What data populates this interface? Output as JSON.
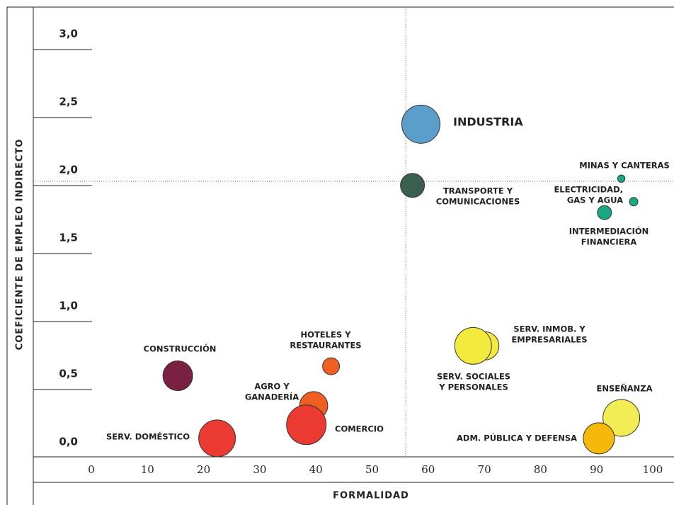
{
  "chart_data": {
    "type": "bubble",
    "x_label": "FORMALIDAD",
    "y_label": "COEFICIENTE DE EMPLEO INDIRECTO",
    "xlim": [
      0,
      100
    ],
    "xticks": [
      0,
      10,
      20,
      30,
      40,
      50,
      60,
      70,
      80,
      90,
      100
    ],
    "ylim": [
      0,
      3
    ],
    "yticks": [
      {
        "value": 0,
        "label": "0,0"
      },
      {
        "value": 0.5,
        "label": "0,5"
      },
      {
        "value": 1,
        "label": "1,0"
      },
      {
        "value": 1.5,
        "label": "1,5"
      },
      {
        "value": 2,
        "label": "2,0"
      },
      {
        "value": 2.5,
        "label": "2,5"
      },
      {
        "value": 3,
        "label": "3,0"
      }
    ],
    "reference_x": 56,
    "reference_y": 2.0,
    "points": [
      {
        "label": [
          "INDUSTRIA"
        ],
        "x": 58.7,
        "y": 2.42,
        "size": 81,
        "color": "#5b9ecb"
      },
      {
        "label": [
          "TRANSPORTE Y",
          "COMUNICACIONES"
        ],
        "x": 57.2,
        "y": 1.97,
        "size": 32,
        "color": "#3a5e4f"
      },
      {
        "label": [
          "MINAS Y CANTERAS"
        ],
        "x": 94.4,
        "y": 2.02,
        "size": 3,
        "color": "#1aa783"
      },
      {
        "label": [
          "ELECTRICIDAD,",
          "GAS Y AGUA"
        ],
        "x": 96.6,
        "y": 1.85,
        "size": 4,
        "color": "#1aa783"
      },
      {
        "label": [
          "INTERMEDIACIÓN",
          "FINANCIERA"
        ],
        "x": 91.4,
        "y": 1.77,
        "size": 11,
        "color": "#1aa783"
      },
      {
        "label": [
          "SERV. INMOB. Y",
          "EMPRESARIALES"
        ],
        "x": 70.1,
        "y": 0.79,
        "size": 44,
        "color": "#f2ea3c"
      },
      {
        "label": [
          "SERV. SOCIALES",
          "Y PERSONALES"
        ],
        "x": 68.0,
        "y": 0.79,
        "size": 75,
        "color": "#f2ea3c"
      },
      {
        "label": [
          "ENSEÑANZA"
        ],
        "x": 94.4,
        "y": 0.26,
        "size": 75,
        "color": "#f2ec55"
      },
      {
        "label": [
          "ADM. PÚBLICA Y DEFENSA"
        ],
        "x": 90.4,
        "y": 0.11,
        "size": 54,
        "color": "#f6b90a"
      },
      {
        "label": [
          "CONSTRUCCIÓN"
        ],
        "x": 15.4,
        "y": 0.57,
        "size": 49,
        "color": "#7a2040"
      },
      {
        "label": [
          "HOTELES Y",
          "RESTAURANTES"
        ],
        "x": 42.7,
        "y": 0.64,
        "size": 16,
        "color": "#f05f22"
      },
      {
        "label": [
          "AGRO Y",
          "GANADERÍA"
        ],
        "x": 39.6,
        "y": 0.35,
        "size": 44,
        "color": "#f05f22"
      },
      {
        "label": [
          "COMERCIO"
        ],
        "x": 38.3,
        "y": 0.21,
        "size": 87,
        "color": "#eb3a32"
      },
      {
        "label": [
          "SERV. DOMÉSTICO"
        ],
        "x": 22.4,
        "y": 0.11,
        "size": 75,
        "color": "#eb3a32"
      }
    ]
  }
}
